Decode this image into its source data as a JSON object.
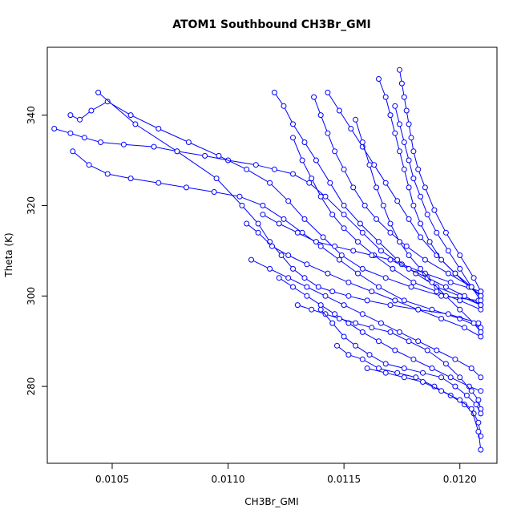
{
  "chart_data": {
    "type": "scatter",
    "title": "ATOM1 Southbound CH3Br_GMI",
    "xlabel": "CH3Br_GMI",
    "ylabel": "Theta (K)",
    "xlim": [
      0.01022,
      0.01216
    ],
    "ylim": [
      263,
      355
    ],
    "x_ticks": [
      0.0105,
      0.011,
      0.0115,
      0.012
    ],
    "x_tick_labels": [
      "0.0105",
      "0.0110",
      "0.0115",
      "0.0120"
    ],
    "y_ticks": [
      280,
      300,
      320,
      340
    ],
    "y_tick_labels": [
      "280",
      "300",
      "320",
      "340"
    ],
    "grid": false,
    "legend": "none",
    "series_color": "#0000ff",
    "marker": "open-circle",
    "connected": true,
    "series": [
      {
        "x": [
          0.01025,
          0.01032,
          0.01038,
          0.01045,
          0.01055,
          0.01068,
          0.01078,
          0.0109,
          0.011,
          0.01112,
          0.0112,
          0.01128,
          0.01135,
          0.01142,
          0.0115,
          0.01158,
          0.01166,
          0.01175,
          0.01185,
          0.01196,
          0.01209
        ],
        "y": [
          337,
          336,
          335,
          334,
          333.5,
          333,
          332,
          331,
          330,
          329,
          328,
          327,
          325,
          322,
          318,
          314,
          310,
          307,
          305,
          303,
          301
        ]
      },
      {
        "x": [
          0.01032,
          0.01036,
          0.01041,
          0.01048,
          0.01058,
          0.0107,
          0.01083,
          0.01096,
          0.01108,
          0.01118,
          0.01126,
          0.01133,
          0.01141,
          0.01149,
          0.01158,
          0.01168,
          0.01179,
          0.01192,
          0.01208
        ],
        "y": [
          340,
          339,
          341,
          343,
          340,
          337,
          334,
          331,
          328,
          325,
          321,
          317,
          313,
          309,
          306,
          304,
          302,
          300,
          299
        ]
      },
      {
        "x": [
          0.01033,
          0.0104,
          0.01048,
          0.01058,
          0.0107,
          0.01082,
          0.01094,
          0.01105,
          0.01115,
          0.01124,
          0.01132,
          0.0114,
          0.01148,
          0.01156,
          0.01165,
          0.01176,
          0.01188,
          0.012,
          0.01209
        ],
        "y": [
          332,
          329,
          327,
          326,
          325,
          324,
          323,
          322,
          320,
          317,
          314,
          311,
          308,
          305,
          302,
          299,
          297,
          295,
          293
        ]
      },
      {
        "x": [
          0.01044,
          0.0106,
          0.01078,
          0.01095,
          0.01106,
          0.01113,
          0.01118,
          0.01123,
          0.01128,
          0.01133,
          0.01139,
          0.01145,
          0.01152,
          0.0116,
          0.0117,
          0.01182,
          0.01195,
          0.01208
        ],
        "y": [
          345,
          338,
          332,
          326,
          320,
          316,
          312,
          309,
          306,
          304,
          302,
          301,
          300,
          299,
          298,
          297,
          296,
          294
        ]
      },
      {
        "x": [
          0.0112,
          0.01124,
          0.01128,
          0.01133,
          0.01138,
          0.01144,
          0.0115,
          0.01157,
          0.01165,
          0.01173,
          0.01181,
          0.0119,
          0.012,
          0.01209
        ],
        "y": [
          345,
          342,
          338,
          334,
          330,
          325,
          320,
          316,
          312,
          308,
          305,
          302,
          300,
          298
        ]
      },
      {
        "x": [
          0.01143,
          0.01148,
          0.01153,
          0.01158,
          0.01163,
          0.01168,
          0.01173,
          0.01178,
          0.01183,
          0.0119,
          0.01198,
          0.01205,
          0.01209
        ],
        "y": [
          345,
          341,
          337,
          333,
          329,
          325,
          321,
          317,
          313,
          309,
          305,
          302,
          300
        ]
      },
      {
        "x": [
          0.01165,
          0.01168,
          0.0117,
          0.01172,
          0.01174,
          0.01176,
          0.01178,
          0.0118,
          0.01183,
          0.01187,
          0.01192,
          0.01198,
          0.01204,
          0.01209
        ],
        "y": [
          348,
          344,
          340,
          336,
          332,
          328,
          324,
          320,
          316,
          312,
          308,
          305,
          302,
          300
        ]
      },
      {
        "x": [
          0.01174,
          0.01175,
          0.01176,
          0.01177,
          0.01178,
          0.01179,
          0.0118,
          0.01182,
          0.01185,
          0.01189,
          0.01194,
          0.012,
          0.01206,
          0.01209
        ],
        "y": [
          350,
          347,
          344,
          341,
          338,
          335,
          332,
          328,
          324,
          319,
          314,
          309,
          304,
          301
        ]
      },
      {
        "x": [
          0.01108,
          0.01113,
          0.01119,
          0.01126,
          0.01134,
          0.01143,
          0.01152,
          0.01162,
          0.01172,
          0.01182,
          0.01192,
          0.01202,
          0.01209
        ],
        "y": [
          316,
          314,
          311,
          309,
          307,
          305,
          303,
          301,
          299,
          297,
          295,
          293,
          291
        ]
      },
      {
        "x": [
          0.0111,
          0.01118,
          0.01126,
          0.01134,
          0.01142,
          0.0115,
          0.01158,
          0.01166,
          0.01174,
          0.01182,
          0.0119,
          0.01198,
          0.01205,
          0.01209
        ],
        "y": [
          308,
          306,
          304,
          302,
          300,
          298,
          296,
          294,
          292,
          290,
          288,
          286,
          284,
          282
        ]
      },
      {
        "x": [
          0.01122,
          0.01128,
          0.01134,
          0.0114,
          0.01146,
          0.01152,
          0.01158,
          0.01165,
          0.01172,
          0.0118,
          0.01188,
          0.01196,
          0.01204,
          0.01209
        ],
        "y": [
          304,
          302,
          300,
          298,
          296,
          294,
          292,
          290,
          288,
          286,
          284,
          282,
          280,
          279
        ]
      },
      {
        "x": [
          0.0113,
          0.01136,
          0.01142,
          0.01148,
          0.01155,
          0.01162,
          0.0117,
          0.01178,
          0.01186,
          0.01194,
          0.012,
          0.01205,
          0.01208,
          0.01209
        ],
        "y": [
          298,
          297,
          296,
          295,
          294,
          293,
          292,
          290,
          288,
          285,
          282,
          279,
          277,
          275
        ]
      },
      {
        "x": [
          0.0114,
          0.01145,
          0.0115,
          0.01155,
          0.01161,
          0.01168,
          0.01176,
          0.01184,
          0.01192,
          0.01198,
          0.01203,
          0.01207,
          0.01209
        ],
        "y": [
          297,
          294,
          291,
          289,
          287,
          285,
          284,
          283,
          282,
          280,
          278,
          276,
          274
        ]
      },
      {
        "x": [
          0.01147,
          0.01152,
          0.01158,
          0.01165,
          0.01173,
          0.01181,
          0.01189,
          0.01196,
          0.01202,
          0.01206,
          0.01208,
          0.01209
        ],
        "y": [
          289,
          287,
          286,
          284,
          283,
          282,
          280,
          278,
          276,
          274,
          272,
          269
        ]
      },
      {
        "x": [
          0.0116,
          0.01168,
          0.01176,
          0.01184,
          0.01192,
          0.012,
          0.01205,
          0.01208,
          0.01209
        ],
        "y": [
          284,
          283,
          282,
          281,
          279,
          277,
          275,
          270,
          266
        ]
      },
      {
        "x": [
          0.01128,
          0.01132,
          0.01136,
          0.0114,
          0.01145,
          0.0115,
          0.01156,
          0.01163,
          0.01171,
          0.0118,
          0.0119,
          0.012,
          0.01209
        ],
        "y": [
          335,
          330,
          326,
          322,
          318,
          315,
          312,
          309,
          306,
          303,
          301,
          299,
          297
        ]
      },
      {
        "x": [
          0.01137,
          0.0114,
          0.01143,
          0.01146,
          0.0115,
          0.01154,
          0.01159,
          0.01164,
          0.0117,
          0.01177,
          0.01185,
          0.01195,
          0.01205,
          0.01209
        ],
        "y": [
          344,
          340,
          336,
          332,
          328,
          324,
          320,
          317,
          314,
          311,
          308,
          305,
          302,
          300
        ]
      },
      {
        "x": [
          0.01172,
          0.01174,
          0.01176,
          0.01178,
          0.0118,
          0.01183,
          0.01186,
          0.0119,
          0.01195,
          0.012,
          0.01205,
          0.01209
        ],
        "y": [
          342,
          338,
          334,
          330,
          326,
          322,
          318,
          314,
          310,
          306,
          302,
          299
        ]
      },
      {
        "x": [
          0.01115,
          0.01122,
          0.0113,
          0.01138,
          0.01146,
          0.01154,
          0.01162,
          0.0117,
          0.01178,
          0.01186,
          0.01194,
          0.01202,
          0.01209
        ],
        "y": [
          318,
          316,
          314,
          312,
          311,
          310,
          309,
          308,
          306,
          304,
          302,
          300,
          298
        ]
      },
      {
        "x": [
          0.01155,
          0.01158,
          0.01161,
          0.01164,
          0.01167,
          0.0117,
          0.01174,
          0.01178,
          0.01183,
          0.01188,
          0.01194,
          0.012,
          0.01206,
          0.01209
        ],
        "y": [
          339,
          334,
          329,
          324,
          320,
          316,
          312,
          309,
          306,
          303,
          300,
          297,
          294,
          292
        ]
      }
    ]
  }
}
